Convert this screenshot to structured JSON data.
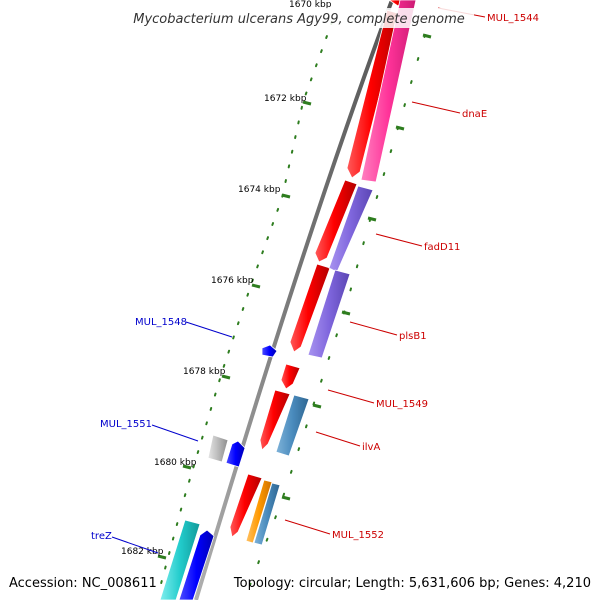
{
  "title": "Mycobacterium ulcerans Agy99, complete genome",
  "accession": "Accession: NC_008611",
  "topology": "Topology: circular; Length: 5,631,606 bp; Genes: 4,210",
  "colors": {
    "backbone": "#7a7a7a",
    "tick": "#2e7d1f",
    "label_forward": "#cc0000",
    "label_reverse": "#0000cc",
    "cds_red": "#ff0000",
    "pink": "#ff3399",
    "purple": "#7f66dd",
    "steelblue": "#4a8bbd",
    "orange": "#ff9900",
    "blue": "#0000ff",
    "gray": "#bbbbbb",
    "cyan": "#22cccc"
  },
  "ticks": [
    {
      "label": "1670 kbp"
    },
    {
      "label": "1672 kbp"
    },
    {
      "label": "1674 kbp"
    },
    {
      "label": "1676 kbp"
    },
    {
      "label": "1678 kbp"
    },
    {
      "label": "1680 kbp"
    },
    {
      "label": "1682 kbp"
    }
  ],
  "genes": [
    {
      "name": "MUL_1544",
      "strand": "forward"
    },
    {
      "name": "dnaE",
      "strand": "forward"
    },
    {
      "name": "fadD11",
      "strand": "forward"
    },
    {
      "name": "plsB1",
      "strand": "forward"
    },
    {
      "name": "MUL_1549",
      "strand": "forward"
    },
    {
      "name": "ilvA",
      "strand": "forward"
    },
    {
      "name": "MUL_1552",
      "strand": "forward"
    },
    {
      "name": "MUL_1548",
      "strand": "reverse"
    },
    {
      "name": "MUL_1551",
      "strand": "reverse"
    },
    {
      "name": "treZ",
      "strand": "reverse"
    }
  ]
}
